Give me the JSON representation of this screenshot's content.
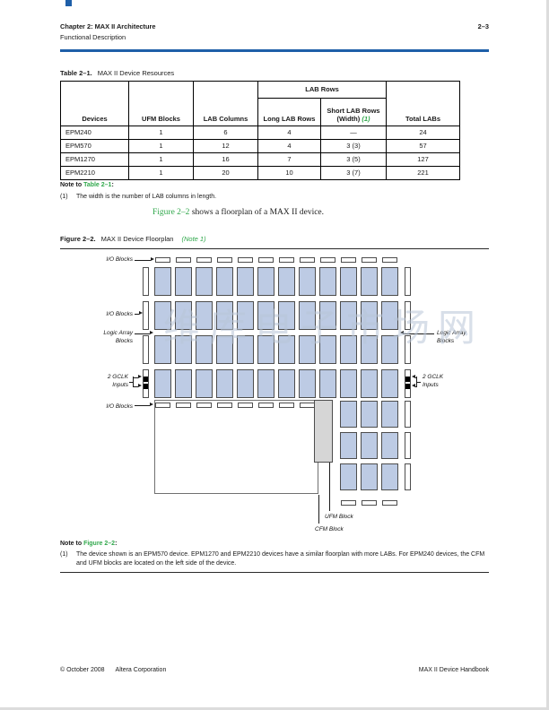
{
  "accent_colors": {
    "rule_blue": "#1e5fa8",
    "link_green": "#31a84c"
  },
  "header": {
    "chapter": "Chapter 2: MAX II Architecture",
    "section": "Functional Description",
    "page_number": "2–3"
  },
  "table": {
    "caption_label": "Table 2–1.",
    "caption_text": "MAX II Device Resources",
    "group_header": "LAB Rows",
    "col_devices": "Devices",
    "col_ufm": "UFM Blocks",
    "col_lab_columns": "LAB Columns",
    "col_long_rows": "Long LAB Rows",
    "col_short_rows_line1": "Short LAB Rows",
    "col_short_rows_line2": "(Width) ",
    "col_short_rows_note": "(1)",
    "col_total": "Total LABs",
    "rows": [
      {
        "cells": [
          "EPM240",
          "1",
          "6",
          "4",
          "—",
          "24"
        ]
      },
      {
        "cells": [
          "EPM570",
          "1",
          "12",
          "4",
          "3 (3)",
          "57"
        ]
      },
      {
        "cells": [
          "EPM1270",
          "1",
          "16",
          "7",
          "3 (5)",
          "127"
        ]
      },
      {
        "cells": [
          "EPM2210",
          "1",
          "20",
          "10",
          "3 (7)",
          "221"
        ]
      }
    ],
    "note_prefix": "Note to ",
    "note_link": "Table 2–1",
    "note_suffix": ":",
    "note_marker": "(1)",
    "note_text": "The width is the number of LAB columns in length."
  },
  "body": {
    "link": "Figure 2–2",
    "text": " shows a floorplan of a MAX II device."
  },
  "figure": {
    "caption_label": "Figure 2–2.",
    "caption_text": "MAX II Device Floorplan",
    "caption_note": "(Note 1)",
    "labels": {
      "io_blocks": "I/O Blocks",
      "logic_array_blocks": "Logic Array\nBlocks",
      "gclk_inputs": "2 GCLK\nInputs",
      "ufm_block": "UFM Block",
      "cfm_block": "CFM Block"
    },
    "grid": {
      "lab_columns": 12,
      "long_lab_rows": 4,
      "short_lab_rows": 3,
      "short_row_width": 3
    },
    "colors": {
      "lab_fill": "#bdcbe4",
      "block_border": "#4d4d4d",
      "ufm_fill": "#d6d6d6",
      "cfm_border": "#707070",
      "gclk": "#000000"
    },
    "watermark": "维库电子市场网",
    "note_prefix": "Note to ",
    "note_link": "Figure 2–2",
    "note_suffix": ":",
    "note_marker": "(1)",
    "note_text": "The device shown is an EPM570 device. EPM1270 and EPM2210 devices have a similar floorplan with more LABs. For EPM240 devices, the CFM and UFM blocks are located on the left side of the device."
  },
  "footer": {
    "copyright": "© October 2008",
    "company": "Altera Corporation",
    "handbook": "MAX II Device Handbook"
  }
}
